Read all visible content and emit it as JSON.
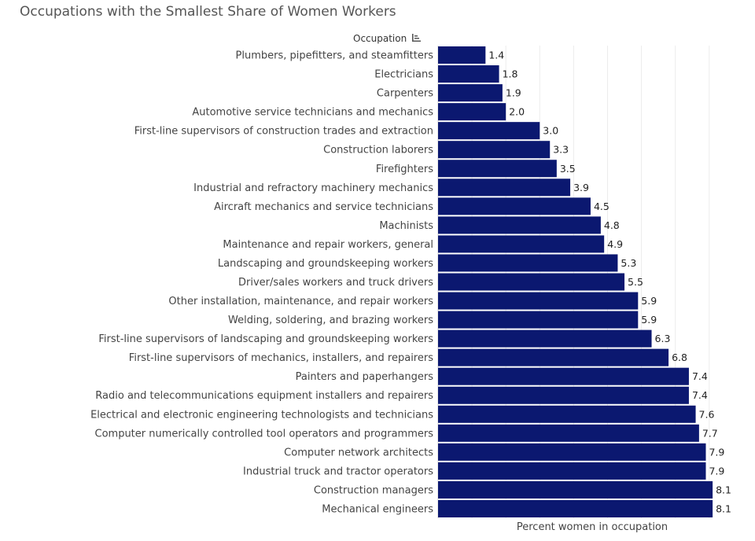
{
  "chart_data": {
    "type": "bar",
    "orientation": "horizontal",
    "title": "Occupations with the Smallest Share of Women Workers",
    "ylabel": "Occupation",
    "xlabel": "Percent women in occupation",
    "xlim": [
      0,
      9
    ],
    "grid": true,
    "bar_color": "#0B1870",
    "sort": "ascending",
    "categories": [
      "Plumbers, pipefitters, and steamfitters",
      "Electricians",
      "Carpenters",
      "Automotive service technicians and mechanics",
      "First-line supervisors of construction trades and extraction",
      "Construction laborers",
      "Firefighters",
      "Industrial and refractory machinery mechanics",
      "Aircraft mechanics and service technicians",
      "Machinists",
      "Maintenance and repair workers, general",
      "Landscaping and groundskeeping workers",
      "Driver/sales workers and truck drivers",
      "Other installation, maintenance, and repair workers",
      "Welding, soldering, and brazing workers",
      "First-line supervisors of landscaping and groundskeeping workers",
      "First-line supervisors of mechanics, installers, and repairers",
      "Painters and paperhangers",
      "Radio and telecommunications equipment installers and repairers",
      "Electrical and electronic engineering technologists and technicians",
      "Computer numerically controlled tool operators and programmers",
      "Computer network architects",
      "Industrial truck and tractor operators",
      "Construction managers",
      "Mechanical engineers"
    ],
    "values": [
      1.4,
      1.8,
      1.9,
      2.0,
      3.0,
      3.3,
      3.5,
      3.9,
      4.5,
      4.8,
      4.9,
      5.3,
      5.5,
      5.9,
      5.9,
      6.3,
      6.8,
      7.4,
      7.4,
      7.6,
      7.7,
      7.9,
      7.9,
      8.1,
      8.1
    ],
    "value_labels": [
      "1.4",
      "1.8",
      "1.9",
      "2.0",
      "3.0",
      "3.3",
      "3.5",
      "3.9",
      "4.5",
      "4.8",
      "4.9",
      "5.3",
      "5.5",
      "5.9",
      "5.9",
      "6.3",
      "6.8",
      "7.4",
      "7.4",
      "7.6",
      "7.7",
      "7.9",
      "7.9",
      "8.1",
      "8.1"
    ]
  }
}
